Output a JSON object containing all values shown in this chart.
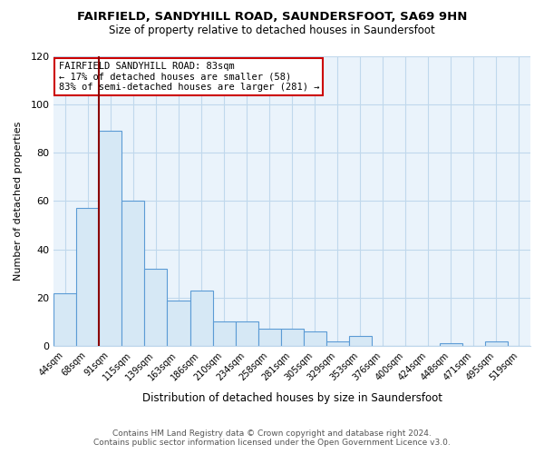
{
  "title": "FAIRFIELD, SANDYHILL ROAD, SAUNDERSFOOT, SA69 9HN",
  "subtitle": "Size of property relative to detached houses in Saundersfoot",
  "xlabel": "Distribution of detached houses by size in Saundersfoot",
  "ylabel": "Number of detached properties",
  "categories": [
    "44sqm",
    "68sqm",
    "91sqm",
    "115sqm",
    "139sqm",
    "163sqm",
    "186sqm",
    "210sqm",
    "234sqm",
    "258sqm",
    "281sqm",
    "305sqm",
    "329sqm",
    "353sqm",
    "376sqm",
    "400sqm",
    "424sqm",
    "448sqm",
    "471sqm",
    "495sqm",
    "519sqm"
  ],
  "values": [
    22,
    57,
    89,
    60,
    32,
    19,
    23,
    10,
    10,
    7,
    7,
    6,
    2,
    4,
    0,
    0,
    0,
    1,
    0,
    2,
    0
  ],
  "bar_color": "#d6e8f5",
  "bar_edge_color": "#5b9bd5",
  "vline_x": 1.5,
  "vline_color": "#8b0000",
  "annotation_title": "FAIRFIELD SANDYHILL ROAD: 83sqm",
  "annotation_line1": "← 17% of detached houses are smaller (58)",
  "annotation_line2": "83% of semi-detached houses are larger (281) →",
  "annotation_box_color": "#ffffff",
  "annotation_box_edge": "#cc0000",
  "ylim": [
    0,
    120
  ],
  "yticks": [
    0,
    20,
    40,
    60,
    80,
    100,
    120
  ],
  "footer_line1": "Contains HM Land Registry data © Crown copyright and database right 2024.",
  "footer_line2": "Contains public sector information licensed under the Open Government Licence v3.0.",
  "bg_color": "#ffffff",
  "plot_bg_color": "#eaf3fb",
  "grid_color": "#c0d8ec"
}
